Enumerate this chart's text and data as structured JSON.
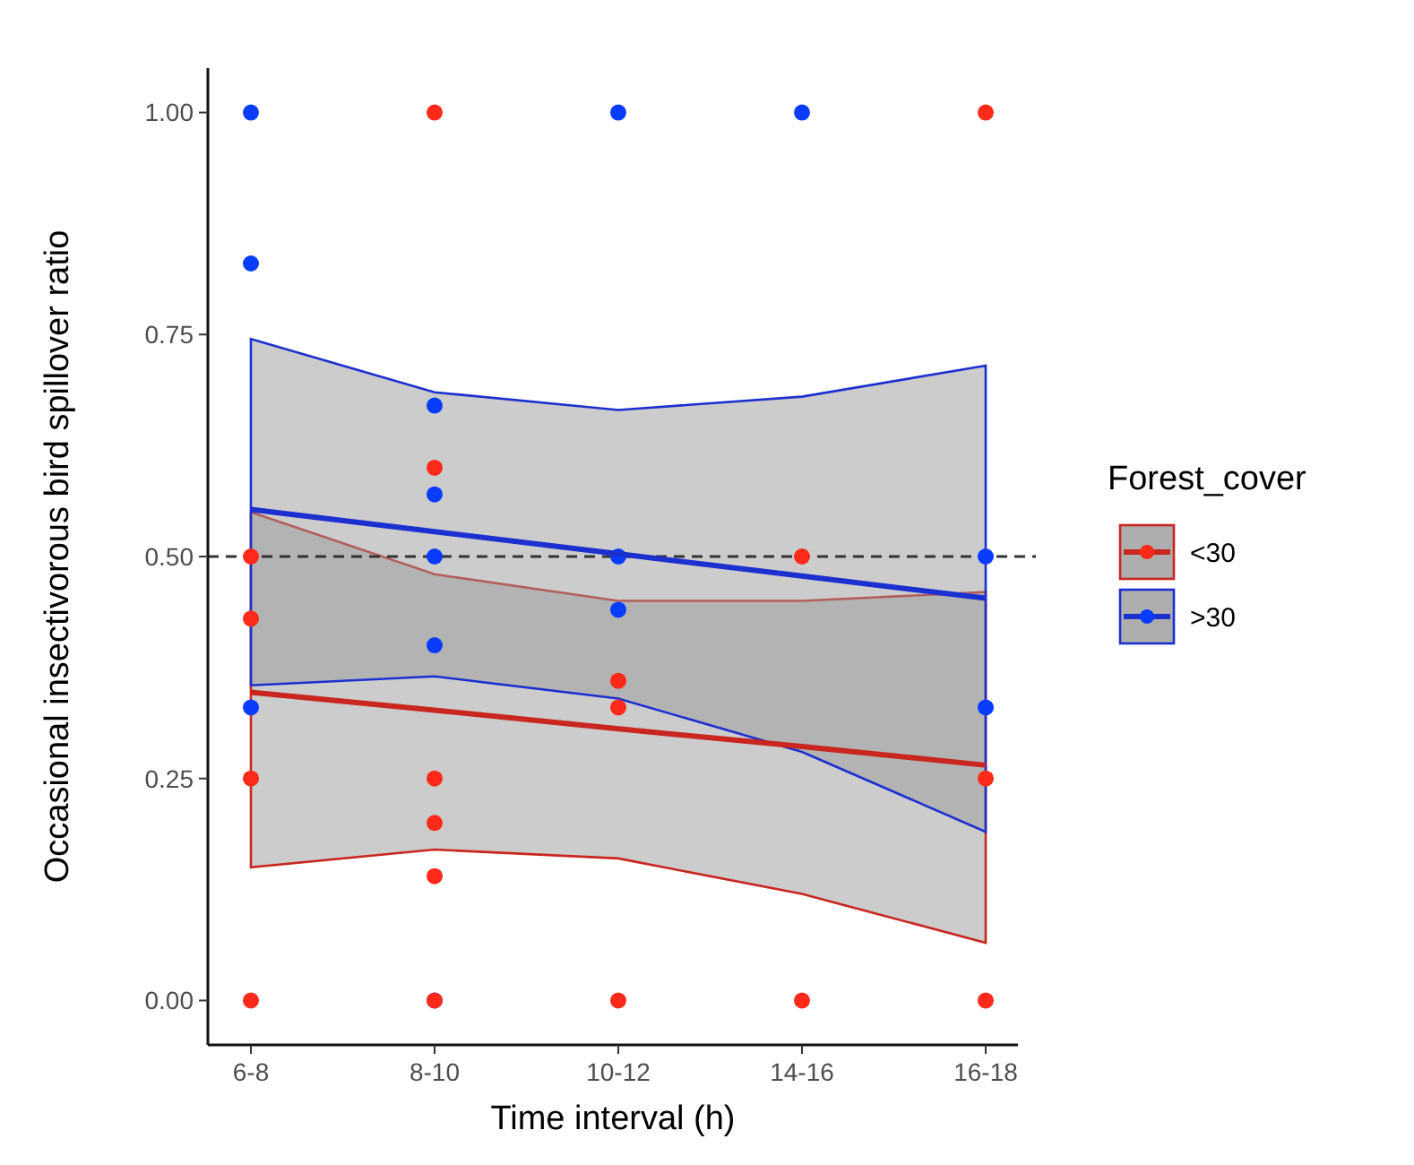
{
  "chart_data": {
    "type": "scatter",
    "xlabel": "Time interval (h)",
    "ylabel": "Occasional insectivorous bird spillover ratio",
    "legend_title": "Forest_cover",
    "legend": "right",
    "grid": false,
    "categories": [
      "6-8",
      "8-10",
      "10-12",
      "14-16",
      "16-18"
    ],
    "ylim": [
      -0.05,
      1.05
    ],
    "yticks": [
      {
        "value": 0,
        "label": "0.00"
      },
      {
        "value": 0.25,
        "label": "0.25"
      },
      {
        "value": 0.5,
        "label": "0.50"
      },
      {
        "value": 0.75,
        "label": "0.75"
      },
      {
        "value": 1,
        "label": "1.00"
      }
    ],
    "ref_lines": [
      {
        "axis": "y",
        "value": 0.5,
        "label": null,
        "color": "#333333",
        "line_style": "dashed"
      }
    ],
    "series": [
      {
        "type": "line",
        "name": "<30",
        "color": "#c8261e",
        "values": [
          0.347,
          0.327,
          0.306,
          0.286,
          0.265
        ],
        "lower": [
          0.15,
          0.17,
          0.16,
          0.12,
          0.065
        ],
        "upper": [
          0.55,
          0.48,
          0.45,
          0.45,
          0.46
        ]
      },
      {
        "type": "line",
        "name": ">30",
        "color": "#1c30d0",
        "values": [
          0.553,
          0.528,
          0.503,
          0.478,
          0.453
        ],
        "lower": [
          0.355,
          0.365,
          0.34,
          0.28,
          0.19
        ],
        "upper": [
          0.745,
          0.685,
          0.665,
          0.68,
          0.715
        ]
      },
      {
        "marker": "circle",
        "color": "#0a3cff",
        "x": [
          "6-8",
          "6-8",
          "6-8",
          "8-10",
          "8-10",
          "8-10",
          "8-10",
          "8-10",
          "10-12",
          "10-12",
          "10-12",
          "14-16",
          "16-18",
          "16-18"
        ],
        "values": [
          1,
          0.83,
          0.33,
          0.67,
          0.57,
          0.5,
          0.4,
          0,
          1,
          0.5,
          0.44,
          1,
          0.5,
          0.33
        ]
      },
      {
        "marker": "circle",
        "color": "#ff2a1a",
        "x": [
          "6-8",
          "6-8",
          "6-8",
          "6-8",
          "8-10",
          "8-10",
          "8-10",
          "8-10",
          "8-10",
          "8-10",
          "10-12",
          "10-12",
          "10-12",
          "14-16",
          "14-16",
          "16-18",
          "16-18",
          "16-18"
        ],
        "values": [
          0.5,
          0.43,
          0.25,
          0,
          1,
          0.6,
          0.25,
          0.2,
          0.14,
          0,
          0.36,
          0.33,
          0,
          0.5,
          0,
          1,
          0.25,
          0
        ]
      }
    ]
  }
}
